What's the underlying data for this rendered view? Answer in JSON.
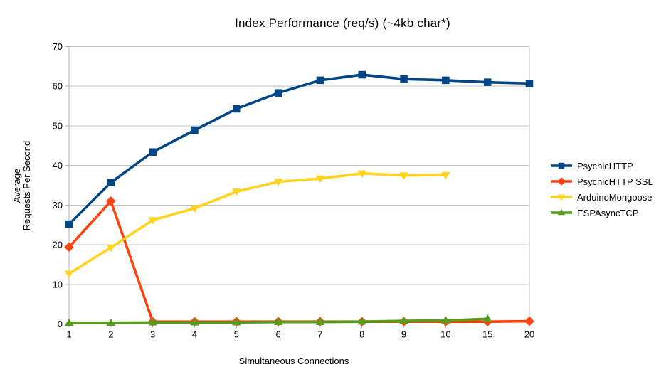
{
  "chart_data": {
    "type": "line",
    "title": "Index Performance (req/s) (~4kb char*)",
    "xlabel": "Simultaneous Connections",
    "ylabel": "Average\nRequests Per Second",
    "categories": [
      "1",
      "2",
      "3",
      "4",
      "5",
      "6",
      "7",
      "8",
      "9",
      "10",
      "15",
      "20"
    ],
    "yticks": [
      0,
      10,
      20,
      30,
      40,
      50,
      60,
      70
    ],
    "ylim": [
      0,
      70
    ],
    "grid": "horizontal",
    "legend_position": "right",
    "series": [
      {
        "name": "PsychicHTTP",
        "color": "#004586",
        "marker": "square",
        "values": [
          25.2,
          35.7,
          43.4,
          48.9,
          54.3,
          58.3,
          61.5,
          62.9,
          61.8,
          61.5,
          61.0,
          60.7
        ]
      },
      {
        "name": "PsychicHTTP SSL",
        "color": "#FF420E",
        "marker": "diamond",
        "values": [
          19.4,
          31.0,
          0.6,
          0.6,
          0.6,
          0.6,
          0.6,
          0.6,
          0.6,
          0.6,
          0.6,
          0.7
        ]
      },
      {
        "name": "ArduinoMongoose",
        "color": "#FFD320",
        "marker": "triangle-down",
        "values": [
          12.7,
          19.3,
          26.2,
          29.2,
          33.4,
          35.9,
          36.7,
          38.0,
          37.5,
          37.6,
          null,
          null
        ]
      },
      {
        "name": "ESPAsyncTCP",
        "color": "#579D1C",
        "marker": "triangle-up",
        "values": [
          0.3,
          0.3,
          0.4,
          0.4,
          0.4,
          0.5,
          0.5,
          0.6,
          0.8,
          0.9,
          1.3,
          null
        ]
      }
    ]
  },
  "colors": {
    "background": "#ffffff",
    "axis": "#b3b3b3",
    "grid": "#c3c3c3",
    "text": "#000000"
  }
}
